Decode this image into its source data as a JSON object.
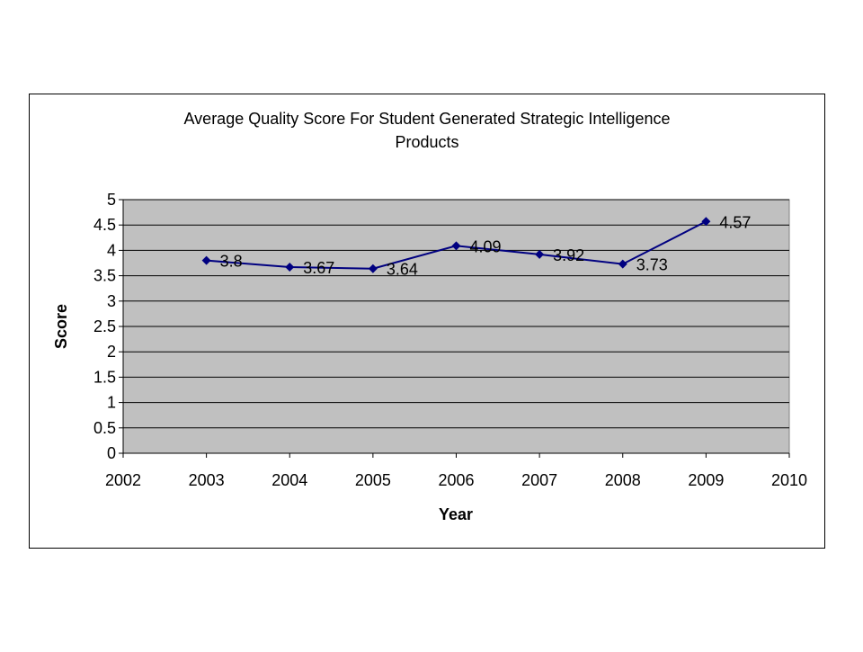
{
  "chart_data": {
    "type": "line",
    "title_line1": "Average Quality Score For Student Generated Strategic Intelligence",
    "title_line2": "Products",
    "xlabel": "Year",
    "ylabel": "Score",
    "x": [
      2003,
      2004,
      2005,
      2006,
      2007,
      2008,
      2009
    ],
    "series": [
      {
        "name": "Score",
        "values": [
          3.8,
          3.67,
          3.64,
          4.09,
          3.92,
          3.73,
          4.57
        ],
        "labels": [
          "3.8",
          "3.67",
          "3.64",
          "4.09",
          "3.92",
          "3.73",
          "4.57"
        ]
      }
    ],
    "xlim": [
      2002,
      2010
    ],
    "ylim": [
      0,
      5
    ],
    "xticks": [
      "2002",
      "2003",
      "2004",
      "2005",
      "2006",
      "2007",
      "2008",
      "2009",
      "2010"
    ],
    "yticks": [
      "0",
      "0.5",
      "1",
      "1.5",
      "2",
      "2.5",
      "3",
      "3.5",
      "4",
      "4.5",
      "5"
    ],
    "grid": true,
    "legend": "none",
    "colors": {
      "plot_bg": "#c0c0c0",
      "line": "#000080",
      "border": "#000000"
    }
  }
}
